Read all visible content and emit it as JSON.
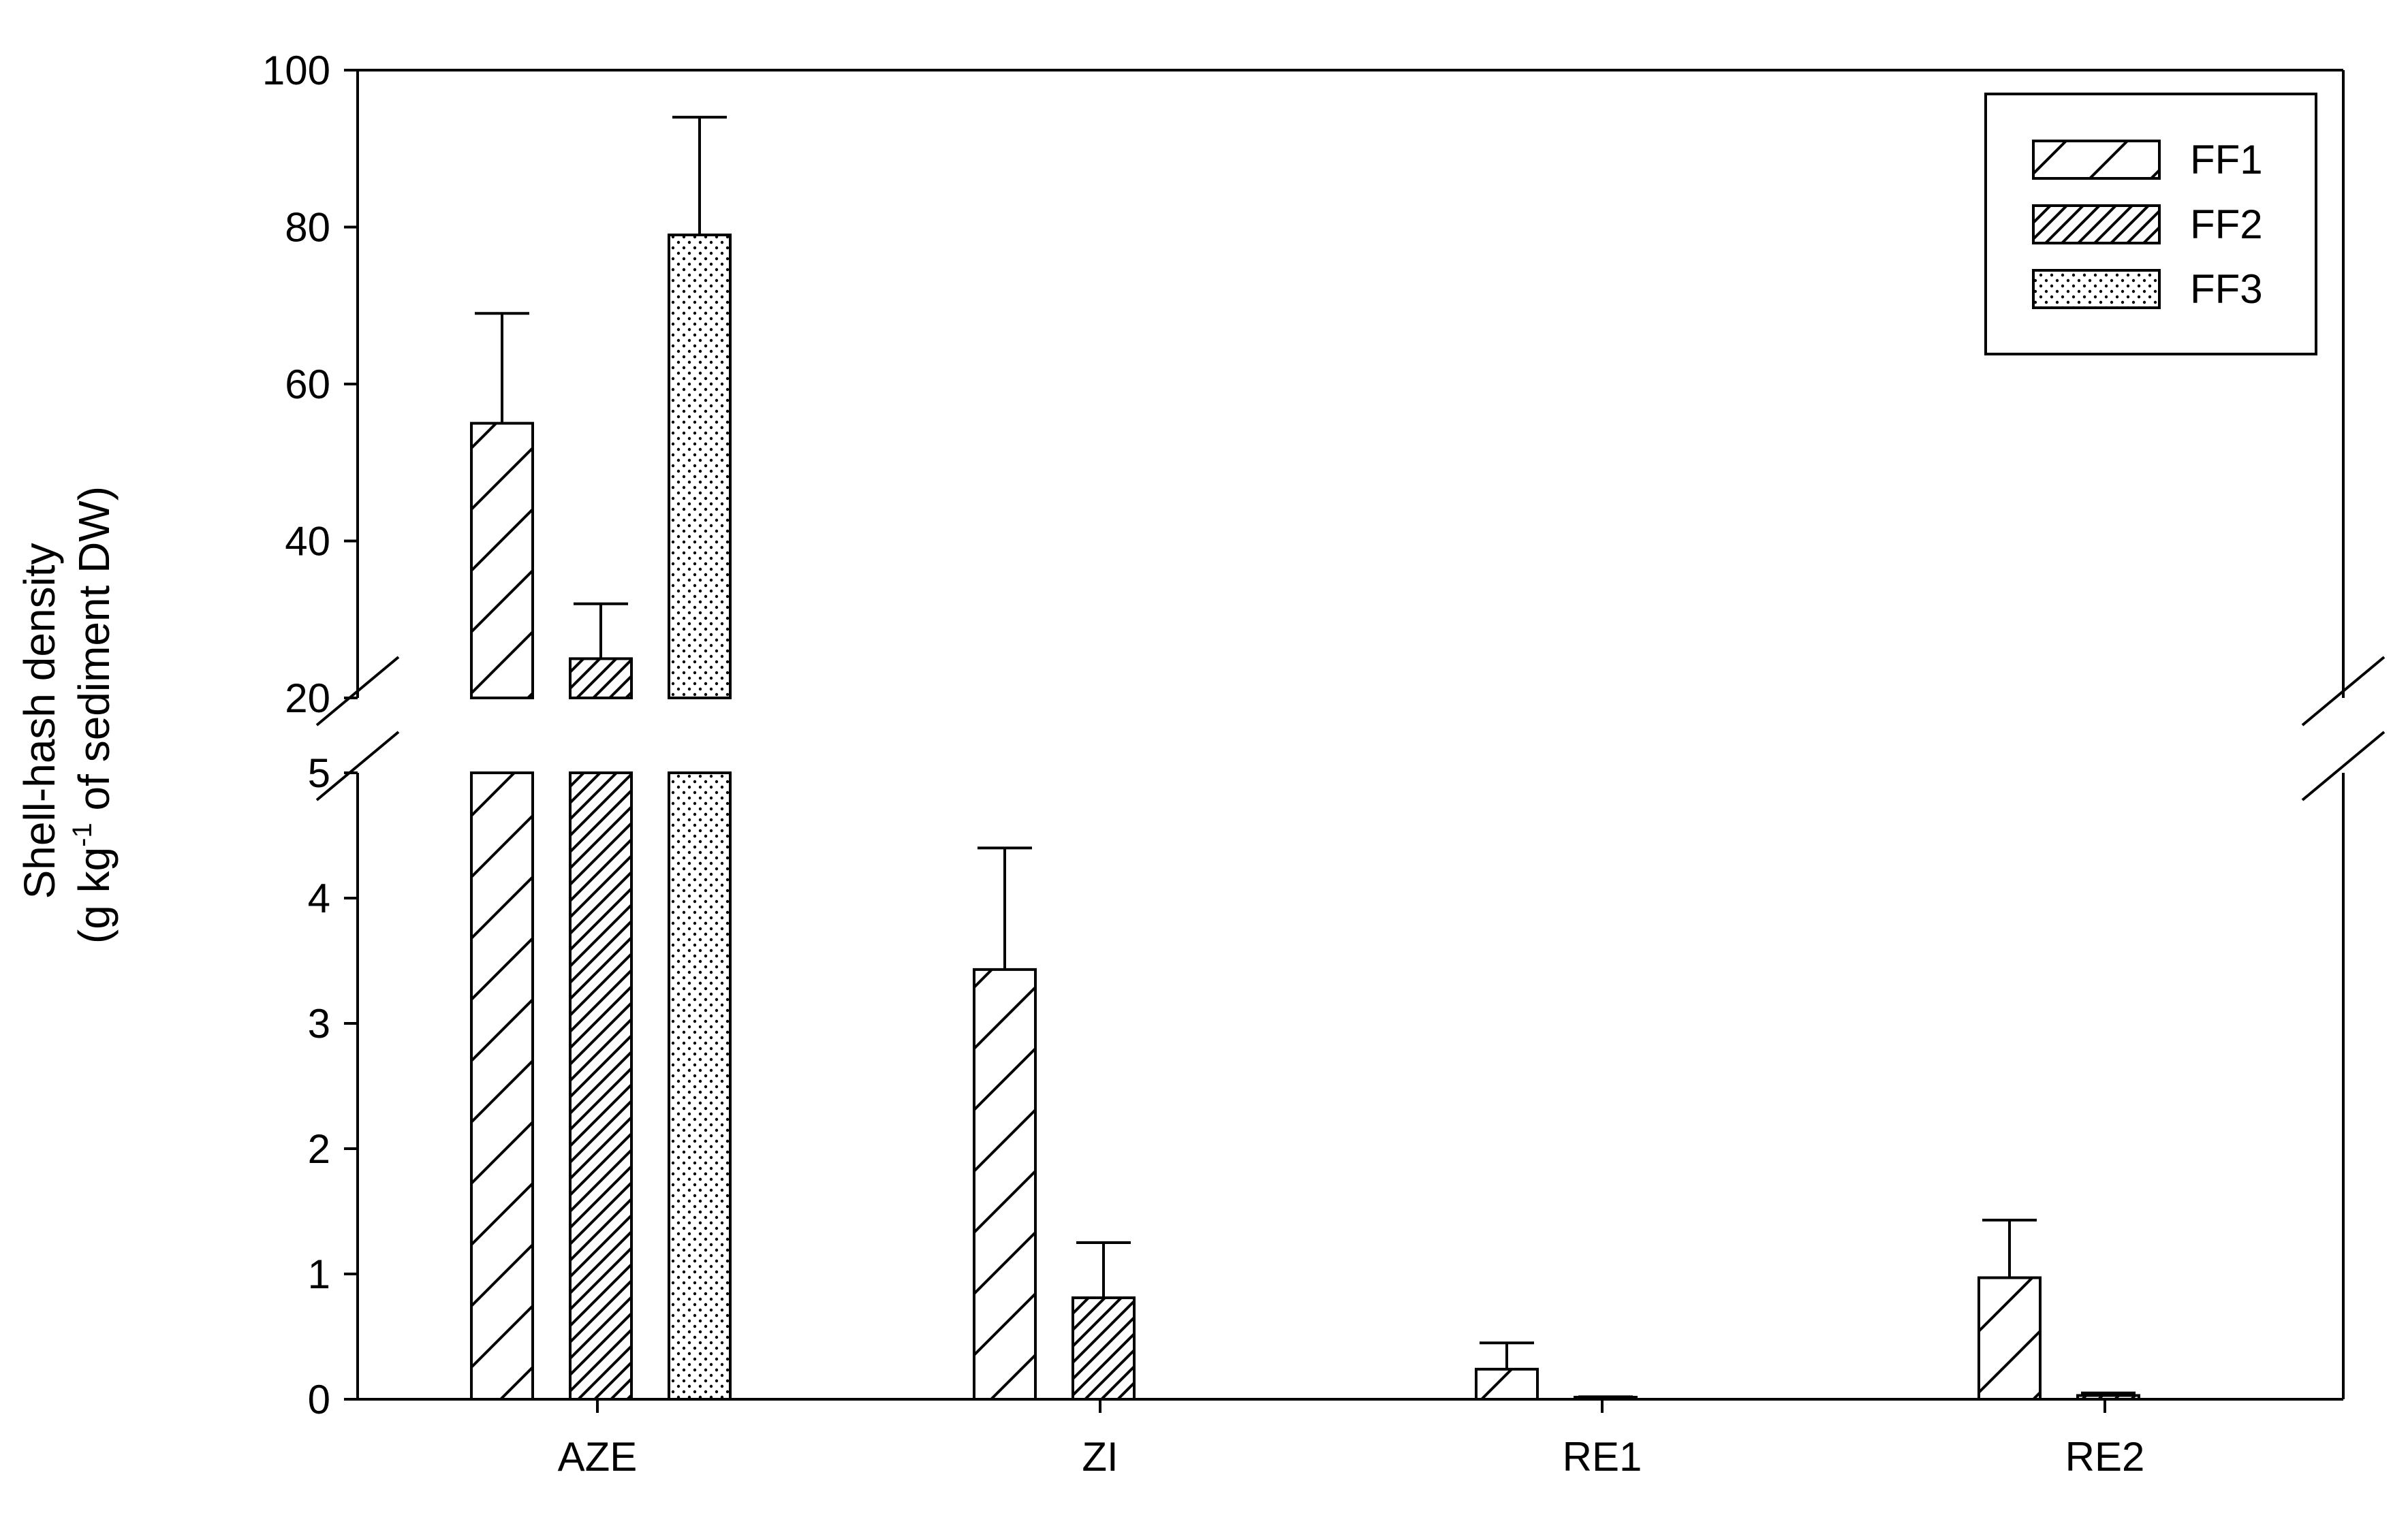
{
  "chart_data": {
    "type": "bar",
    "categories": [
      "AZE",
      "ZI",
      "RE1",
      "RE2"
    ],
    "series": [
      {
        "name": "FF1",
        "pattern": "hatch-sparse",
        "values": [
          55,
          3.43,
          0.24,
          0.97
        ],
        "errors": [
          14,
          0.97,
          0.21,
          0.46
        ]
      },
      {
        "name": "FF2",
        "pattern": "hatch-dense",
        "values": [
          25,
          0.81,
          0.01,
          0.03
        ],
        "errors": [
          7,
          0.44,
          0.01,
          0.02
        ]
      },
      {
        "name": "FF3",
        "pattern": "dots",
        "values": [
          79,
          null,
          null,
          null
        ],
        "errors": [
          15,
          null,
          null,
          null
        ]
      }
    ],
    "ylabel_line1": "Shell-hash density",
    "ylabel_line2_pre": "(g  kg",
    "ylabel_line2_sup": "-1",
    "ylabel_line2_post": " of sediment DW)",
    "xlabel": "",
    "y_axis": {
      "broken": true,
      "lower_range": [
        0,
        5
      ],
      "lower_ticks": [
        0,
        1,
        2,
        3,
        4,
        5
      ],
      "upper_range": [
        20,
        100
      ],
      "upper_ticks": [
        20,
        40,
        60,
        80,
        100
      ]
    },
    "legend_position": "top-right",
    "grid": false
  }
}
